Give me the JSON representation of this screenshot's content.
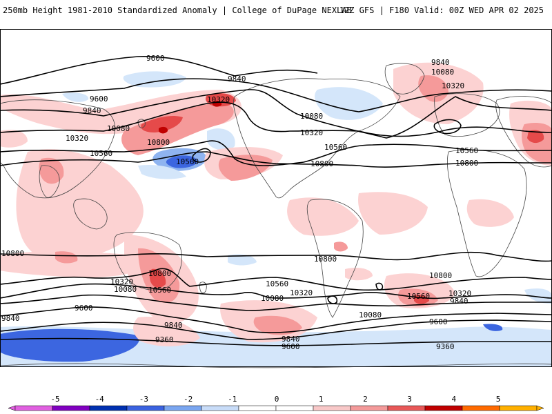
{
  "header": {
    "title_left": "250mb Height 1981-2010 Standardized Anomaly | College of DuPage NEXLAB",
    "title_right": "12Z GFS | F180 Valid: 00Z WED APR 02 2025"
  },
  "colorbar": {
    "ticks": [
      "-5",
      "-4",
      "-3",
      "-2",
      "-1",
      "0",
      "1",
      "2",
      "3",
      "4",
      "5"
    ],
    "colors": [
      "#e060e0",
      "#8000c0",
      "#0030b0",
      "#3a62e0",
      "#7aa6f0",
      "#c8dcf8",
      "#ffffff",
      "#ffffff",
      "#f8c8c8",
      "#f49a9a",
      "#e85858",
      "#c00000",
      "#ff6a00",
      "#ffb000"
    ]
  },
  "contour_labels": [
    "9600",
    "9840",
    "10080",
    "10320",
    "10560",
    "10800",
    "9360"
  ],
  "colors": {
    "pos_light": "#fcd2d2",
    "pos_med": "#f59a9a",
    "pos_strong": "#e54a4a",
    "pos_extreme": "#c00000",
    "neg_light": "#d4e6fa",
    "neg_med": "#8fb4f0",
    "neg_strong": "#3c66e0",
    "neg_extreme": "#0a32b8",
    "contour": "#000000",
    "coast": "#444444"
  }
}
